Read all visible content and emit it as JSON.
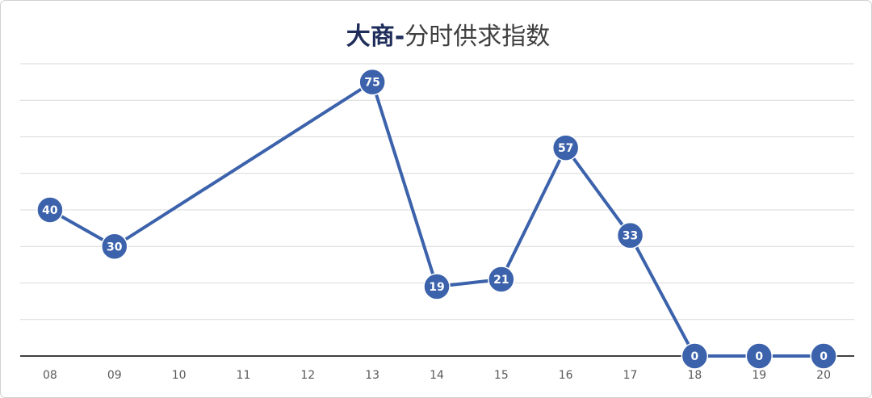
{
  "chart_data": {
    "type": "line",
    "title": [
      "大商-",
      "分时供求指数"
    ],
    "x": [
      8,
      9,
      13,
      14,
      15,
      16,
      17,
      18,
      19,
      20
    ],
    "series": [
      {
        "color": "#3b62ab",
        "values": [
          40,
          30,
          75,
          19,
          21,
          57,
          33,
          0,
          0,
          0
        ]
      }
    ],
    "xlim": [
      7.5,
      20.5
    ],
    "xticks": [
      {
        "value": 8,
        "label": "08"
      },
      {
        "value": 9,
        "label": "09"
      },
      10,
      11,
      12,
      13,
      14,
      15,
      16,
      17,
      18,
      19,
      20
    ],
    "ylim": [
      0,
      80
    ],
    "yticks": [
      0,
      10,
      20,
      30,
      40,
      50,
      60,
      70,
      80
    ],
    "ytick_labels": false,
    "grid": true,
    "data_labels": true
  }
}
